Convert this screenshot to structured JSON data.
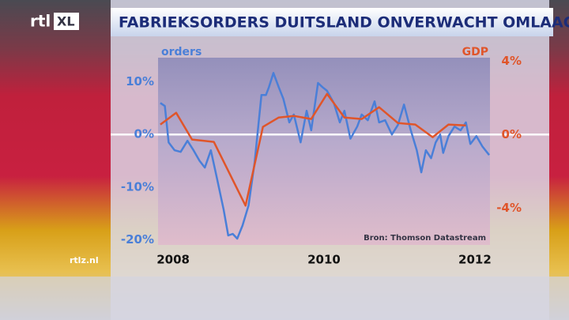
{
  "branding": {
    "logo": "rtl",
    "logo_suffix": "XL",
    "website": "rtlz.nl"
  },
  "chart_data": {
    "type": "line",
    "title": "FABRIEKSORDERS DUITSLAND ONVERWACHT OMLAAG",
    "source": "Bron: Thomson Datastream",
    "xlim": [
      2007.8,
      2012.2
    ],
    "xticks": [
      2008,
      2010,
      2012
    ],
    "ylim": [
      -21,
      14.6
    ],
    "yticks": [
      {
        "value": 10,
        "label": "10%"
      },
      {
        "value": 0,
        "label": "0%"
      },
      {
        "value": -10,
        "label": "-10%"
      },
      {
        "value": -20,
        "label": "-20%"
      }
    ],
    "y2lim": [
      -6,
      4.2
    ],
    "y2ticks": [
      {
        "value": 4,
        "label": "4%"
      },
      {
        "value": 0,
        "label": "0%"
      },
      {
        "value": -4,
        "label": "-4%"
      }
    ],
    "zero_line": true,
    "series": [
      {
        "name": "orders",
        "color": "#4a7fd8",
        "x": [
          2007.83,
          2007.89,
          2007.94,
          2008.02,
          2008.1,
          2008.19,
          2008.27,
          2008.35,
          2008.42,
          2008.5,
          2008.58,
          2008.67,
          2008.73,
          2008.79,
          2008.85,
          2008.92,
          2009.0,
          2009.08,
          2009.17,
          2009.23,
          2009.27,
          2009.33,
          2009.4,
          2009.46,
          2009.54,
          2009.6,
          2009.69,
          2009.77,
          2009.83,
          2009.92,
          2009.98,
          2010.04,
          2010.13,
          2010.21,
          2010.27,
          2010.35,
          2010.44,
          2010.5,
          2010.58,
          2010.67,
          2010.73,
          2010.81,
          2010.9,
          2010.98,
          2011.06,
          2011.15,
          2011.23,
          2011.29,
          2011.35,
          2011.42,
          2011.48,
          2011.54,
          2011.58,
          2011.65,
          2011.73,
          2011.81,
          2011.88,
          2011.94,
          2012.02,
          2012.1,
          2012.19
        ],
        "values": [
          6.0,
          5.4,
          -1.5,
          -3.0,
          -3.3,
          -1.2,
          -3.0,
          -5.0,
          -6.3,
          -3.0,
          -8.3,
          -14.3,
          -19.2,
          -18.9,
          -19.8,
          -17.3,
          -13.5,
          -5.3,
          7.5,
          7.5,
          9.0,
          11.7,
          9.0,
          6.8,
          2.3,
          3.8,
          -1.5,
          4.5,
          0.8,
          9.8,
          9.0,
          8.3,
          6.0,
          2.3,
          4.5,
          -0.8,
          1.5,
          3.8,
          2.7,
          6.3,
          2.3,
          2.7,
          0,
          1.8,
          5.7,
          0.8,
          -3.0,
          -7.2,
          -3.0,
          -4.5,
          -1.5,
          0,
          -3.5,
          -0.3,
          1.5,
          0.8,
          2.3,
          -1.8,
          -0.3,
          -2.3,
          -3.9
        ]
      },
      {
        "name": "GDP",
        "color": "#e0552a",
        "axis": "y2",
        "x": [
          2007.83,
          2008.04,
          2008.25,
          2008.54,
          2008.96,
          2009.19,
          2009.4,
          2009.6,
          2009.83,
          2010.04,
          2010.27,
          2010.5,
          2010.73,
          2010.98,
          2011.21,
          2011.44,
          2011.65,
          2011.88
        ],
        "values": [
          0.56,
          1.2,
          -0.26,
          -0.39,
          -3.86,
          0.43,
          0.94,
          1.03,
          0.86,
          2.23,
          0.94,
          0.86,
          1.5,
          0.64,
          0.56,
          -0.13,
          0.56,
          0.51
        ]
      }
    ]
  }
}
